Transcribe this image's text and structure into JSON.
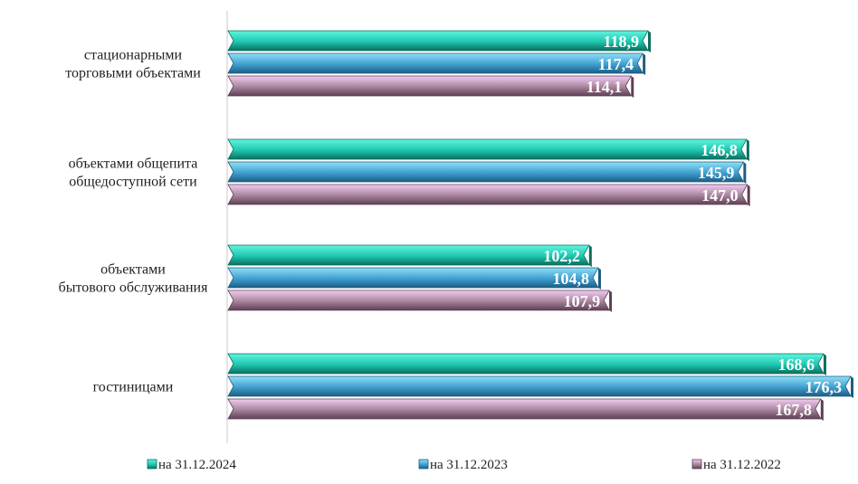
{
  "chart_data": {
    "type": "bar",
    "orientation": "horizontal",
    "categories": [
      [
        "стационарными",
        "торговыми объектами"
      ],
      [
        "объектами общепита",
        "общедоступной сети"
      ],
      [
        "объектами",
        "бытового обслуживания"
      ],
      [
        "гостиницами"
      ]
    ],
    "value_labels": [
      [
        "118,9",
        "117,4",
        "114,1"
      ],
      [
        "146,8",
        "145,9",
        "147,0"
      ],
      [
        "102,2",
        "104,8",
        "107,9"
      ],
      [
        "168,6",
        "176,3",
        "167,8"
      ]
    ],
    "series": [
      {
        "name": "на 31.12.2024",
        "values": [
          118.9,
          146.8,
          102.2,
          168.6
        ],
        "color": "#1fc7b0",
        "dark": "#0b6e5e",
        "light": "#5ff5de"
      },
      {
        "name": "на 31.12.2023",
        "values": [
          117.4,
          145.9,
          104.8,
          176.3
        ],
        "color": "#3f9fd0",
        "dark": "#1c5d82",
        "light": "#8fe0f6"
      },
      {
        "name": "на 31.12.2022",
        "values": [
          114.1,
          147.0,
          107.9,
          167.8
        ],
        "color": "#a7849c",
        "dark": "#5e3f55",
        "light": "#f2ccf0"
      }
    ],
    "xlim": [
      0,
      176.3
    ],
    "grid": false,
    "legend_position": "bottom"
  }
}
